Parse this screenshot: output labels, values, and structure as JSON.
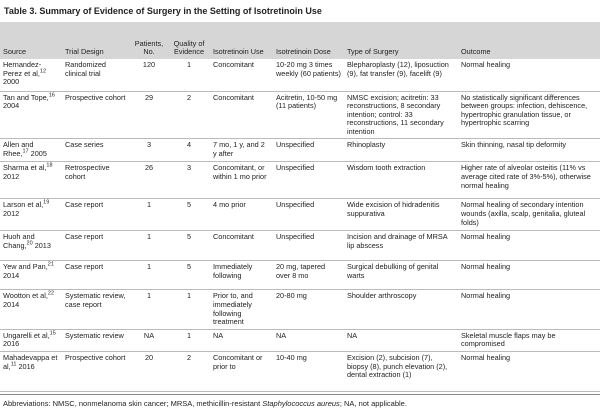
{
  "title": "Table 3. Summary of Evidence of Surgery in the Setting of Isotretinoin Use",
  "table": {
    "header": [
      "Source",
      "Trial Design",
      "Patients, No.",
      "Quality of Evidence",
      "Isotretinoin Use",
      "Isotretinoin Dose",
      "Type of Surgery",
      "Outcome"
    ],
    "rows": [
      [
        {
          "name": "Hernandez-Perez et al,",
          "ref": "12",
          "year": "2000"
        },
        "Randomized clinical trial",
        "120",
        "1",
        "Concomitant",
        "10-20 mg 3 times weekly (60 patients)",
        "Blepharoplasty (12), liposuction (9), fat transfer (9), facelift (9)",
        "Normal healing"
      ],
      [
        {
          "name": "Tan and Tope,",
          "ref": "16",
          "year": "2004"
        },
        "Prospective cohort",
        "29",
        "2",
        "Concomitant",
        "Acitretin, 10-50 mg (11 patients)",
        "NMSC excision; acitretin: 33 reconstructions, 8 secondary intention; control: 33 reconstructions, 11 secondary intention",
        "No statistically significant differences between groups: infection, dehiscence, hypertrophic granulation tissue, or hypertrophic scarring"
      ],
      [
        {
          "name": "Allen and Rhee,",
          "ref": "17",
          "year": "2005"
        },
        "Case series",
        "3",
        "4",
        "7 mo, 1 y, and 2 y after",
        "Unspecified",
        "Rhinoplasty",
        "Skin thinning, nasal tip deformity"
      ],
      [
        {
          "name": "Sharma et al,",
          "ref": "18",
          "year": "2012"
        },
        "Retrospective cohort",
        "26",
        "3",
        "Concomitant, or within 1 mo prior",
        "Unspecified",
        "Wisdom tooth extraction",
        "Higher rate of alveolar osteitis (11% vs average cited rate of 3%-5%), otherwise normal healing"
      ],
      [
        {
          "name": "Larson et al,",
          "ref": "19",
          "year": "2012"
        },
        "Case report",
        "1",
        "5",
        "4 mo prior",
        "Unspecified",
        "Wide excision of hidradenitis suppurativa",
        "Normal healing of secondary intention wounds (axilla, scalp, genitalia, gluteal folds)"
      ],
      [
        {
          "name": "Huoh and Chang,",
          "ref": "20",
          "year": "2013"
        },
        "Case report",
        "1",
        "5",
        "Concomitant",
        "Unspecified",
        "Incision and drainage of MRSA lip abscess",
        "Normal healing"
      ],
      [
        {
          "name": "Yew and Pan,",
          "ref": "21",
          "year": "2014"
        },
        "Case report",
        "1",
        "5",
        "Immediately following",
        "20 mg, tapered over 8 mo",
        "Surgical debulking of genital warts",
        "Normal healing"
      ],
      [
        {
          "name": "Wootton et al,",
          "ref": "22",
          "year": "2014"
        },
        "Systematic review, case report",
        "1",
        "1",
        "Prior to, and immediately following treatment",
        "20-80 mg",
        "Shoulder arthroscopy",
        "Normal healing"
      ],
      [
        {
          "name": "Ungarelli et al,",
          "ref": "15",
          "year": "2016"
        },
        "Systematic review",
        "NA",
        "1",
        "NA",
        "NA",
        "NA",
        "Skeletal muscle flaps may be compromised"
      ],
      [
        {
          "name": "Mahadevappa et al,",
          "ref": "11",
          "year": "2016"
        },
        "Prospective cohort",
        "20",
        "2",
        "Concomitant or prior to",
        "10-40 mg",
        "Excision (2), subcision (7), biopsy (8), punch elevation (2), dental extraction (1)",
        "Normal healing"
      ]
    ]
  },
  "footer": {
    "before": "Abbreviations: NMSC, nonmelanoma skin cancer; MRSA, methicillin-resistant ",
    "italic": "Staphylococcus aureus",
    "after": "; NA, not applicable."
  }
}
